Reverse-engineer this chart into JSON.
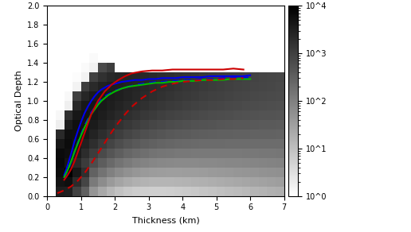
{
  "xlabel": "Thickness (km)",
  "ylabel": "Optical Depth",
  "xlim": [
    0,
    7
  ],
  "ylim": [
    0,
    2
  ],
  "xticks": [
    0,
    1,
    2,
    3,
    4,
    5,
    6,
    7
  ],
  "yticks": [
    0,
    0.2,
    0.4,
    0.6,
    0.8,
    1.0,
    1.2,
    1.4,
    1.6,
    1.8,
    2.0
  ],
  "colorbar_labels": [
    "10^0",
    "10^1",
    "10^2",
    "10^3",
    "10^4"
  ],
  "bg_nx": 28,
  "bg_ny": 20,
  "bg_xmin": 0.0,
  "bg_xmax": 7.0,
  "bg_ymin": 0.0,
  "bg_ymax": 2.0,
  "line_blue_solid_x": [
    0.5,
    0.6,
    0.7,
    0.8,
    0.9,
    1.0,
    1.1,
    1.2,
    1.3,
    1.4,
    1.5,
    1.6,
    1.7,
    1.8,
    1.9,
    2.0,
    2.2,
    2.4,
    2.6,
    2.8,
    3.0,
    3.2,
    3.4,
    3.6,
    3.8,
    4.0,
    4.2,
    4.4,
    4.6,
    4.8,
    5.0,
    5.2,
    5.4,
    5.6,
    5.8,
    6.0
  ],
  "line_blue_solid_y": [
    0.22,
    0.32,
    0.44,
    0.57,
    0.68,
    0.78,
    0.87,
    0.94,
    1.0,
    1.05,
    1.09,
    1.12,
    1.14,
    1.16,
    1.17,
    1.18,
    1.2,
    1.21,
    1.22,
    1.22,
    1.23,
    1.23,
    1.24,
    1.24,
    1.24,
    1.25,
    1.25,
    1.25,
    1.25,
    1.26,
    1.26,
    1.26,
    1.26,
    1.26,
    1.26,
    1.27
  ],
  "line_blue_dashed_x": [
    0.5,
    0.6,
    0.7,
    0.8,
    0.9,
    1.0,
    1.1,
    1.2,
    1.3,
    1.4,
    1.5,
    1.6,
    1.7,
    1.8,
    1.9,
    2.0,
    2.2,
    2.4,
    2.6,
    2.8,
    3.0,
    3.2,
    3.4,
    3.6,
    3.8,
    4.0,
    4.2,
    4.4,
    4.6,
    4.8,
    5.0,
    5.2,
    5.4,
    5.6,
    5.8,
    6.0
  ],
  "line_blue_dashed_y": [
    0.19,
    0.26,
    0.35,
    0.46,
    0.56,
    0.65,
    0.74,
    0.81,
    0.88,
    0.93,
    0.98,
    1.02,
    1.05,
    1.07,
    1.09,
    1.11,
    1.13,
    1.15,
    1.17,
    1.18,
    1.19,
    1.2,
    1.2,
    1.21,
    1.21,
    1.22,
    1.22,
    1.22,
    1.23,
    1.23,
    1.23,
    1.24,
    1.24,
    1.24,
    1.24,
    1.25
  ],
  "line_green_solid_x": [
    0.5,
    0.6,
    0.7,
    0.8,
    0.9,
    1.0,
    1.1,
    1.2,
    1.3,
    1.4,
    1.5,
    1.6,
    1.7,
    1.8,
    1.9,
    2.0,
    2.2,
    2.4,
    2.6,
    2.8,
    3.0,
    3.2,
    3.4,
    3.6,
    3.8,
    4.0,
    4.2,
    4.4,
    4.6,
    4.8,
    5.0,
    5.2,
    5.4,
    5.6,
    5.8,
    6.0
  ],
  "line_green_solid_y": [
    0.2,
    0.27,
    0.36,
    0.46,
    0.55,
    0.64,
    0.72,
    0.79,
    0.86,
    0.91,
    0.96,
    1.0,
    1.03,
    1.06,
    1.08,
    1.1,
    1.13,
    1.15,
    1.16,
    1.17,
    1.18,
    1.19,
    1.19,
    1.2,
    1.2,
    1.21,
    1.21,
    1.21,
    1.22,
    1.22,
    1.22,
    1.22,
    1.23,
    1.23,
    1.23,
    1.23
  ],
  "line_red_solid_x": [
    0.5,
    0.6,
    0.7,
    0.8,
    0.9,
    1.0,
    1.1,
    1.2,
    1.3,
    1.5,
    1.7,
    1.9,
    2.1,
    2.3,
    2.5,
    2.8,
    3.1,
    3.4,
    3.7,
    4.0,
    4.3,
    4.6,
    4.9,
    5.2,
    5.5,
    5.8
  ],
  "line_red_solid_y": [
    0.17,
    0.22,
    0.28,
    0.36,
    0.46,
    0.56,
    0.66,
    0.76,
    0.86,
    1.0,
    1.1,
    1.17,
    1.22,
    1.26,
    1.29,
    1.31,
    1.32,
    1.32,
    1.33,
    1.33,
    1.33,
    1.33,
    1.33,
    1.33,
    1.34,
    1.33
  ],
  "line_red_dashed_x": [
    0.3,
    0.5,
    0.7,
    0.9,
    1.1,
    1.3,
    1.5,
    1.7,
    1.9,
    2.1,
    2.3,
    2.5,
    2.8,
    3.1,
    3.4,
    3.7,
    4.0,
    4.3,
    4.6,
    4.9,
    5.2,
    5.5,
    5.8
  ],
  "line_red_dashed_y": [
    0.03,
    0.06,
    0.1,
    0.16,
    0.24,
    0.34,
    0.45,
    0.56,
    0.67,
    0.77,
    0.86,
    0.94,
    1.03,
    1.1,
    1.15,
    1.18,
    1.2,
    1.21,
    1.22,
    1.22,
    1.23,
    1.23,
    1.24
  ],
  "color_blue": "#0000ee",
  "color_green": "#00bb00",
  "color_red": "#cc0000",
  "line_width": 1.5
}
